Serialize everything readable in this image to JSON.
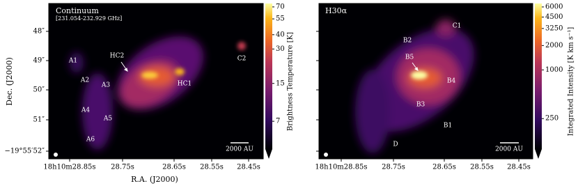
{
  "axes": {
    "ylabel": "Dec. (J2000)",
    "xlabel": "R.A. (J2000)"
  },
  "panels": [
    {
      "title": "Continuum",
      "subtitle": "[231.054-232.929 GHz]",
      "labels": [
        "A1",
        "HC2",
        "A2",
        "A3",
        "HC1",
        "C2",
        "A4",
        "A5",
        "A6"
      ],
      "scalebar": "2000 AU",
      "yticks": [
        "48″",
        "49″",
        "50″",
        "51″",
        "−19°55′52″"
      ],
      "xticks": [
        "18h10m28.85s",
        "28.75s",
        "28.65s",
        "28.55s",
        "28.45s"
      ],
      "colorbar": {
        "label": "Brightness Temperature [K]",
        "scale": "log",
        "clim": [
          4,
          75
        ],
        "ticks": [
          70,
          55,
          40,
          30,
          15,
          7
        ]
      }
    },
    {
      "title": "H30α",
      "labels": [
        "C1",
        "B2",
        "B5",
        "B4",
        "B3",
        "B1",
        "D"
      ],
      "scalebar": "2000 AU",
      "xticks": [
        "18h10m28.85s",
        "28.75s",
        "28.65s",
        "28.55s",
        "28.45s"
      ],
      "colorbar": {
        "label": "Integrated Intensity [K km s⁻¹]",
        "scale": "log",
        "clim": [
          105,
          6620
        ],
        "ticks": [
          6000,
          4500,
          3250,
          2000,
          1000,
          250
        ]
      }
    }
  ]
}
